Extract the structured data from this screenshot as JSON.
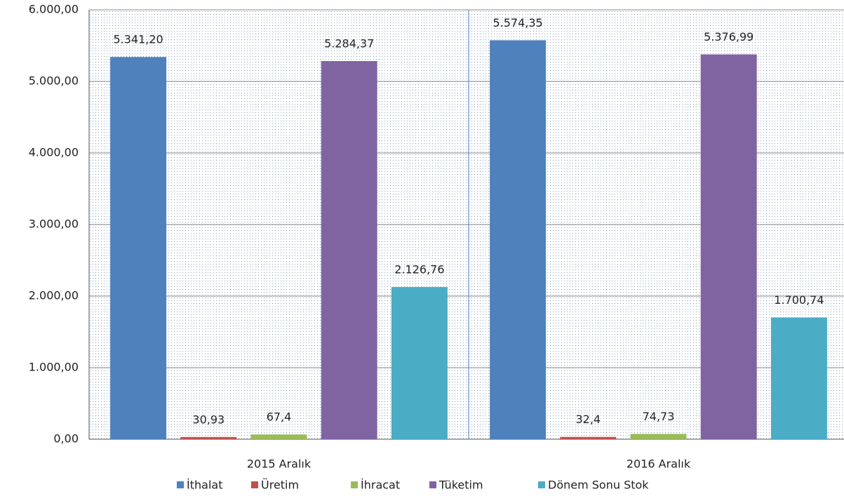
{
  "chart_data": {
    "type": "bar",
    "categories": [
      "2015 Aralık",
      "2016 Aralık"
    ],
    "series": [
      {
        "name": "İthalat",
        "color": "#4f81bd",
        "values": [
          5341.2,
          5574.35
        ],
        "value_labels": [
          "5.341,20",
          "5.574,35"
        ]
      },
      {
        "name": "Üretim",
        "color": "#c0504d",
        "values": [
          30.93,
          32.4
        ],
        "value_labels": [
          "30,93",
          "32,4"
        ]
      },
      {
        "name": "İhracat",
        "color": "#9bbb59",
        "values": [
          67.4,
          74.73
        ],
        "value_labels": [
          "67,4",
          "74,73"
        ]
      },
      {
        "name": "Tüketim",
        "color": "#8064a2",
        "values": [
          5284.37,
          5376.99
        ],
        "value_labels": [
          "5.284,37",
          "5.376,99"
        ]
      },
      {
        "name": "Dönem Sonu Stok",
        "color": "#4bacc6",
        "values": [
          2126.76,
          1700.74
        ],
        "value_labels": [
          "2.126,76",
          "1.700,74"
        ]
      }
    ],
    "ylim": [
      0,
      6000
    ],
    "yticks": [
      {
        "value": 0,
        "label": "0,00"
      },
      {
        "value": 1000,
        "label": "1.000,00"
      },
      {
        "value": 2000,
        "label": "2.000,00"
      },
      {
        "value": 3000,
        "label": "3.000,00"
      },
      {
        "value": 4000,
        "label": "4.000,00"
      },
      {
        "value": 5000,
        "label": "5.000,00"
      },
      {
        "value": 6000,
        "label": "6.000,00"
      }
    ],
    "grid": true,
    "legend": "bottom"
  }
}
